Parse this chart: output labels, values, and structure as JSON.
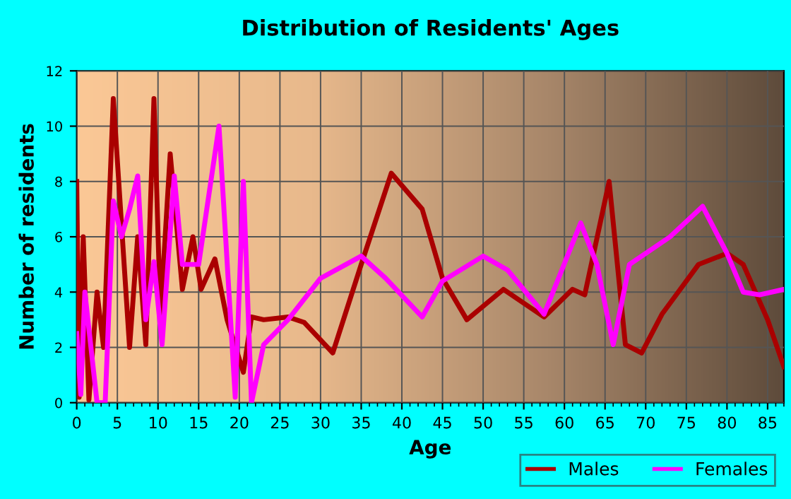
{
  "chart_data": {
    "type": "line",
    "title": "Distribution of Residents' Ages",
    "xlabel": "Age",
    "ylabel": "Number of residents",
    "xlim": [
      0,
      87
    ],
    "xticks": [
      0,
      5,
      10,
      15,
      20,
      25,
      30,
      35,
      40,
      45,
      50,
      55,
      60,
      65,
      70,
      75,
      80,
      85
    ],
    "ylim": [
      0,
      12
    ],
    "yticks": [
      0,
      2,
      4,
      6,
      8,
      10,
      12
    ],
    "grid": true,
    "legend": "bottom right",
    "marker": "none",
    "line_style": "solid",
    "series": [
      {
        "name": "Males",
        "color": "#aa0000",
        "x": [
          0,
          0.3,
          0.8,
          1.5,
          2.5,
          3.3,
          4.5,
          6.5,
          7.5,
          8.5,
          9.5,
          10.3,
          11.5,
          13,
          14.3,
          15.3,
          17,
          18.5,
          20.5,
          21.5,
          23,
          26,
          28,
          31.5,
          35,
          38.7,
          42.5,
          45,
          48,
          52.5,
          57.5,
          61,
          62.5,
          65.5,
          67.5,
          69.5,
          72,
          74,
          76.5,
          80,
          82,
          85,
          87
        ],
        "values": [
          8,
          0.2,
          6,
          0.1,
          4,
          2,
          11,
          2,
          6,
          2.1,
          11,
          3.2,
          9,
          4.1,
          6,
          4.1,
          5.2,
          3,
          1.1,
          3.1,
          3,
          3.1,
          2.9,
          1.8,
          5,
          8.3,
          7,
          4.5,
          3,
          4.1,
          3.1,
          4.1,
          3.9,
          8,
          2.1,
          1.8,
          3.2,
          4,
          5,
          5.4,
          5,
          3,
          1.3
        ]
      },
      {
        "name": "Females",
        "color": "#ff00ff",
        "x": [
          0,
          0.5,
          1,
          2.5,
          3.5,
          4.5,
          5.5,
          6.5,
          7.5,
          8.5,
          9.5,
          10.5,
          12,
          13,
          15,
          17.5,
          19.5,
          20.5,
          21.5,
          23,
          26,
          30,
          35,
          38,
          42.5,
          45,
          50,
          53,
          57.5,
          62,
          64,
          66,
          68,
          73,
          77,
          80,
          82,
          84,
          87
        ],
        "values": [
          2.5,
          0.3,
          4,
          0,
          0,
          7.3,
          6,
          7,
          8.2,
          3,
          5.1,
          2.1,
          8.2,
          5,
          5,
          10,
          0.2,
          8,
          0,
          2.1,
          3,
          4.5,
          5.3,
          4.5,
          3.1,
          4.4,
          5.3,
          4.8,
          3.2,
          6.5,
          5,
          2.1,
          5,
          6,
          7.1,
          5.4,
          4,
          3.9,
          4.1
        ]
      }
    ]
  }
}
